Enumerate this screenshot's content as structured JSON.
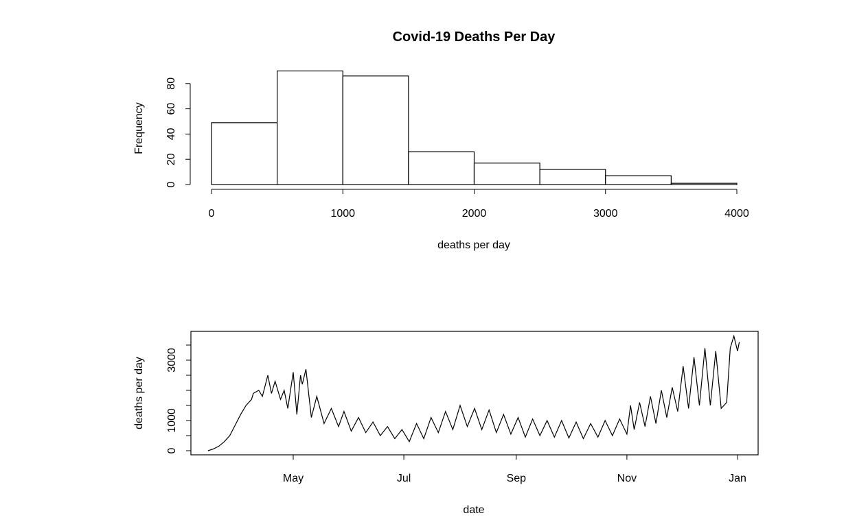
{
  "chart_data": [
    {
      "type": "bar",
      "title": "Covid-19 Deaths Per Day",
      "xlabel": "deaths per day",
      "ylabel": "Frequency",
      "bin_edges": [
        0,
        500,
        1000,
        1500,
        2000,
        2500,
        3000,
        3500,
        4000
      ],
      "values": [
        49,
        90,
        86,
        26,
        17,
        12,
        7,
        1
      ],
      "xlim": [
        0,
        4000
      ],
      "ylim": [
        0,
        90
      ],
      "xticks": [
        "0",
        "1000",
        "2000",
        "3000",
        "4000"
      ],
      "yticks": [
        "0",
        "20",
        "40",
        "60",
        "80"
      ],
      "grid": false
    },
    {
      "type": "line",
      "title": "",
      "xlabel": "date",
      "ylabel": "deaths per day",
      "xticks": [
        "May",
        "Jul",
        "Sep",
        "Nov",
        "Jan"
      ],
      "yticks": [
        "0",
        "1000",
        "3000"
      ],
      "ylim": [
        0,
        3900
      ],
      "grid": false,
      "series": [
        {
          "name": "",
          "x": [
            "Mar 15",
            "Mar 18",
            "Mar 21",
            "Mar 24",
            "Mar 27",
            "Mar 30",
            "Apr 2",
            "Apr 5",
            "Apr 8",
            "Apr 9",
            "Apr 12",
            "Apr 14",
            "Apr 17",
            "Apr 19",
            "Apr 21",
            "Apr 24",
            "Apr 26",
            "Apr 28",
            "May 1",
            "May 3",
            "May 5",
            "May 6",
            "May 8",
            "May 11",
            "May 14",
            "May 18",
            "May 22",
            "May 26",
            "May 29",
            "Jun 2",
            "Jun 6",
            "Jun 10",
            "Jun 14",
            "Jun 18",
            "Jun 22",
            "Jun 26",
            "Jun 30",
            "Jul 4",
            "Jul 8",
            "Jul 12",
            "Jul 16",
            "Jul 20",
            "Jul 24",
            "Jul 28",
            "Aug 1",
            "Aug 5",
            "Aug 9",
            "Aug 13",
            "Aug 17",
            "Aug 21",
            "Aug 25",
            "Aug 29",
            "Sep 2",
            "Sep 6",
            "Sep 10",
            "Sep 14",
            "Sep 18",
            "Sep 22",
            "Sep 26",
            "Sep 30",
            "Oct 4",
            "Oct 8",
            "Oct 12",
            "Oct 16",
            "Oct 20",
            "Oct 24",
            "Oct 28",
            "Nov 1",
            "Nov 3",
            "Nov 5",
            "Nov 8",
            "Nov 11",
            "Nov 14",
            "Nov 17",
            "Nov 20",
            "Nov 23",
            "Nov 26",
            "Nov 29",
            "Dec 2",
            "Dec 5",
            "Dec 8",
            "Dec 11",
            "Dec 14",
            "Dec 17",
            "Dec 20",
            "Dec 23",
            "Dec 26",
            "Dec 28",
            "Dec 30",
            "Jan 1",
            "Jan 2"
          ],
          "values": [
            0,
            60,
            150,
            300,
            500,
            850,
            1200,
            1500,
            1700,
            1900,
            2000,
            1800,
            2500,
            1900,
            2300,
            1700,
            2000,
            1400,
            2600,
            1200,
            2500,
            2200,
            2700,
            1100,
            1800,
            900,
            1400,
            800,
            1300,
            650,
            1100,
            600,
            950,
            500,
            800,
            400,
            700,
            300,
            900,
            400,
            1100,
            600,
            1300,
            700,
            1500,
            800,
            1400,
            700,
            1350,
            600,
            1200,
            550,
            1100,
            450,
            1050,
            500,
            1000,
            450,
            1000,
            420,
            950,
            400,
            900,
            450,
            1000,
            500,
            1050,
            550,
            1500,
            700,
            1600,
            800,
            1800,
            900,
            2000,
            1100,
            2100,
            1300,
            2800,
            1400,
            3100,
            1500,
            3400,
            1500,
            3300,
            1400,
            1600,
            3400,
            3800,
            3300,
            3600
          ]
        }
      ]
    }
  ]
}
